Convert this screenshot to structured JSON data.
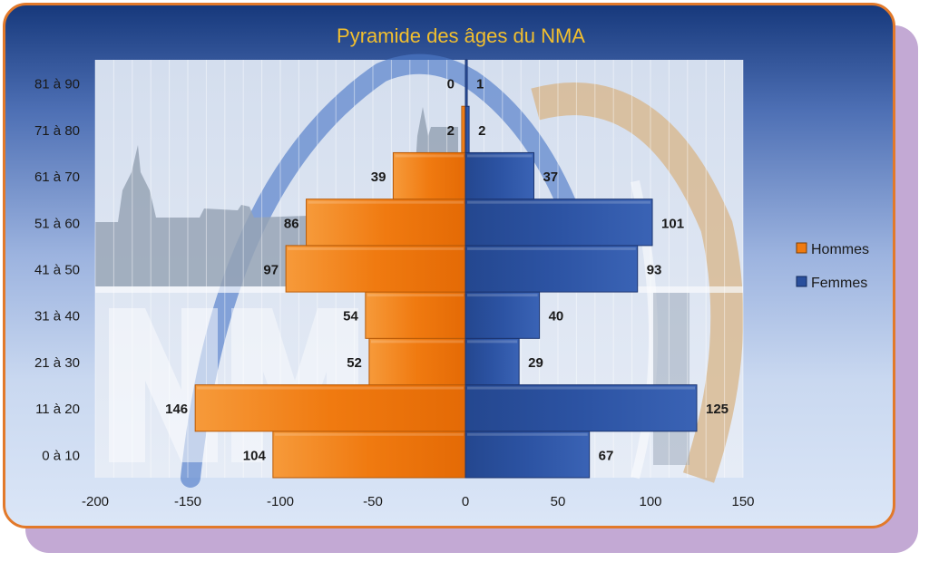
{
  "chart_data": {
    "type": "bar",
    "orientation": "horizontal",
    "title": "Pyramide des âges du NMA",
    "categories": [
      "0 à 10",
      "11 à 20",
      "21 à 30",
      "31 à 40",
      "41 à 50",
      "51 à 60",
      "61 à 70",
      "71 à 80",
      "81 à 90"
    ],
    "series": [
      {
        "name": "Hommes",
        "values": [
          -104,
          -146,
          -52,
          -54,
          -97,
          -86,
          -39,
          -2,
          0
        ],
        "color": "#f07a10"
      },
      {
        "name": "Femmes",
        "values": [
          67,
          125,
          29,
          40,
          93,
          101,
          37,
          2,
          1
        ],
        "color": "#2a4f9c"
      }
    ],
    "data_labels": {
      "Hommes": [
        "104",
        "146",
        "52",
        "54",
        "97",
        "86",
        "39",
        "2",
        "0"
      ],
      "Femmes": [
        "67",
        "125",
        "29",
        "40",
        "93",
        "101",
        "37",
        "2",
        "1"
      ]
    },
    "xlim": [
      -200,
      150
    ],
    "xticks": [
      "-200",
      "-150",
      "-100",
      "-50",
      "0",
      "50",
      "100",
      "150"
    ],
    "grid": true,
    "legend": "right"
  }
}
